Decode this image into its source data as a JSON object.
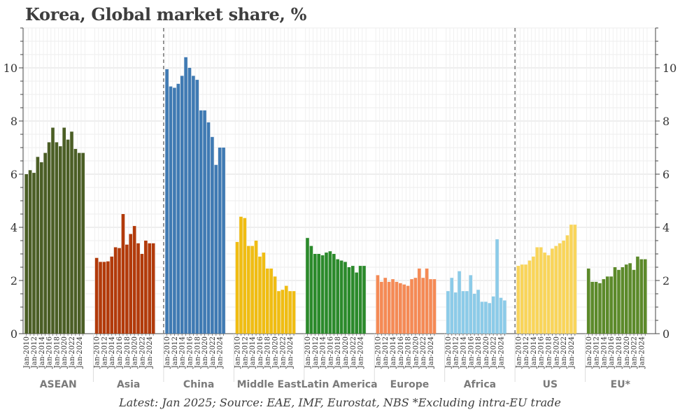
{
  "title": "Korea, Global market share, %",
  "caption": "Latest: Jan 2025; Source: EAE, IMF, Eurostat, NBS *Excluding intra-EU trade",
  "chart_data": {
    "type": "bar",
    "title": "Korea, Global market share, %",
    "ylim": [
      0,
      11.5
    ],
    "yticks": [
      0,
      2,
      4,
      6,
      8,
      10
    ],
    "grid": true,
    "x_tick_labels": [
      "Jan-2010",
      "Jan-2012",
      "Jan-2014",
      "Jan-2016",
      "Jan-2018",
      "Jan-2020",
      "Jan-2022",
      "Jan-2024"
    ],
    "x": [
      "2010",
      "2011",
      "2012",
      "2013",
      "2014",
      "2015",
      "2016",
      "2017",
      "2018",
      "2019",
      "2020",
      "2021",
      "2022",
      "2023",
      "2024",
      "2025"
    ],
    "series": [
      {
        "name": "ASEAN",
        "color": "#4b5e25",
        "values": [
          6.0,
          6.15,
          6.05,
          6.65,
          6.45,
          6.8,
          7.2,
          7.75,
          7.2,
          7.05,
          7.75,
          7.3,
          7.6,
          6.95,
          6.8,
          6.8
        ]
      },
      {
        "name": "Asia",
        "color": "#b23a0a",
        "values": [
          2.85,
          2.7,
          2.7,
          2.72,
          2.9,
          3.25,
          3.22,
          4.5,
          3.35,
          3.75,
          4.05,
          3.4,
          3.0,
          3.5,
          3.4,
          3.4
        ]
      },
      {
        "name": "China",
        "color": "#3f7ab3",
        "values": [
          9.95,
          9.3,
          9.25,
          9.4,
          9.7,
          10.4,
          10.0,
          9.7,
          9.55,
          8.4,
          8.4,
          7.95,
          7.4,
          6.35,
          7.0,
          7.0
        ]
      },
      {
        "name": "Middle East",
        "color": "#f0bd12",
        "values": [
          3.45,
          4.4,
          4.35,
          3.3,
          3.3,
          3.5,
          2.9,
          3.05,
          2.45,
          2.45,
          2.15,
          1.6,
          1.65,
          1.8,
          1.6,
          1.6
        ]
      },
      {
        "name": "Latin America",
        "color": "#2b8a2b",
        "values": [
          3.6,
          3.3,
          3.0,
          3.0,
          2.95,
          3.05,
          3.1,
          3.0,
          2.8,
          2.75,
          2.7,
          2.5,
          2.55,
          2.3,
          2.55,
          2.55
        ]
      },
      {
        "name": "Europe",
        "color": "#f58a55",
        "values": [
          2.2,
          1.95,
          2.1,
          1.95,
          2.05,
          1.95,
          1.9,
          1.85,
          1.8,
          2.05,
          2.1,
          2.45,
          2.1,
          2.45,
          2.05,
          2.05
        ]
      },
      {
        "name": "Africa",
        "color": "#8ccbe8",
        "values": [
          1.6,
          2.1,
          1.55,
          2.35,
          1.6,
          1.6,
          2.2,
          1.5,
          1.65,
          1.2,
          1.2,
          1.15,
          1.4,
          3.55,
          1.35,
          1.25
        ]
      },
      {
        "name": "US",
        "color": "#f9d55a",
        "values": [
          2.55,
          2.6,
          2.6,
          2.75,
          2.9,
          3.25,
          3.25,
          3.05,
          2.95,
          3.2,
          3.3,
          3.4,
          3.5,
          3.7,
          4.1,
          4.1
        ]
      },
      {
        "name": "EU*",
        "color": "#5c8a2a",
        "values": [
          2.45,
          1.95,
          1.95,
          1.9,
          2.05,
          2.15,
          2.15,
          2.5,
          2.4,
          2.5,
          2.6,
          2.65,
          2.4,
          2.9,
          2.8,
          2.8
        ]
      }
    ],
    "dashed_separators_after": [
      "Asia",
      "Africa"
    ]
  }
}
